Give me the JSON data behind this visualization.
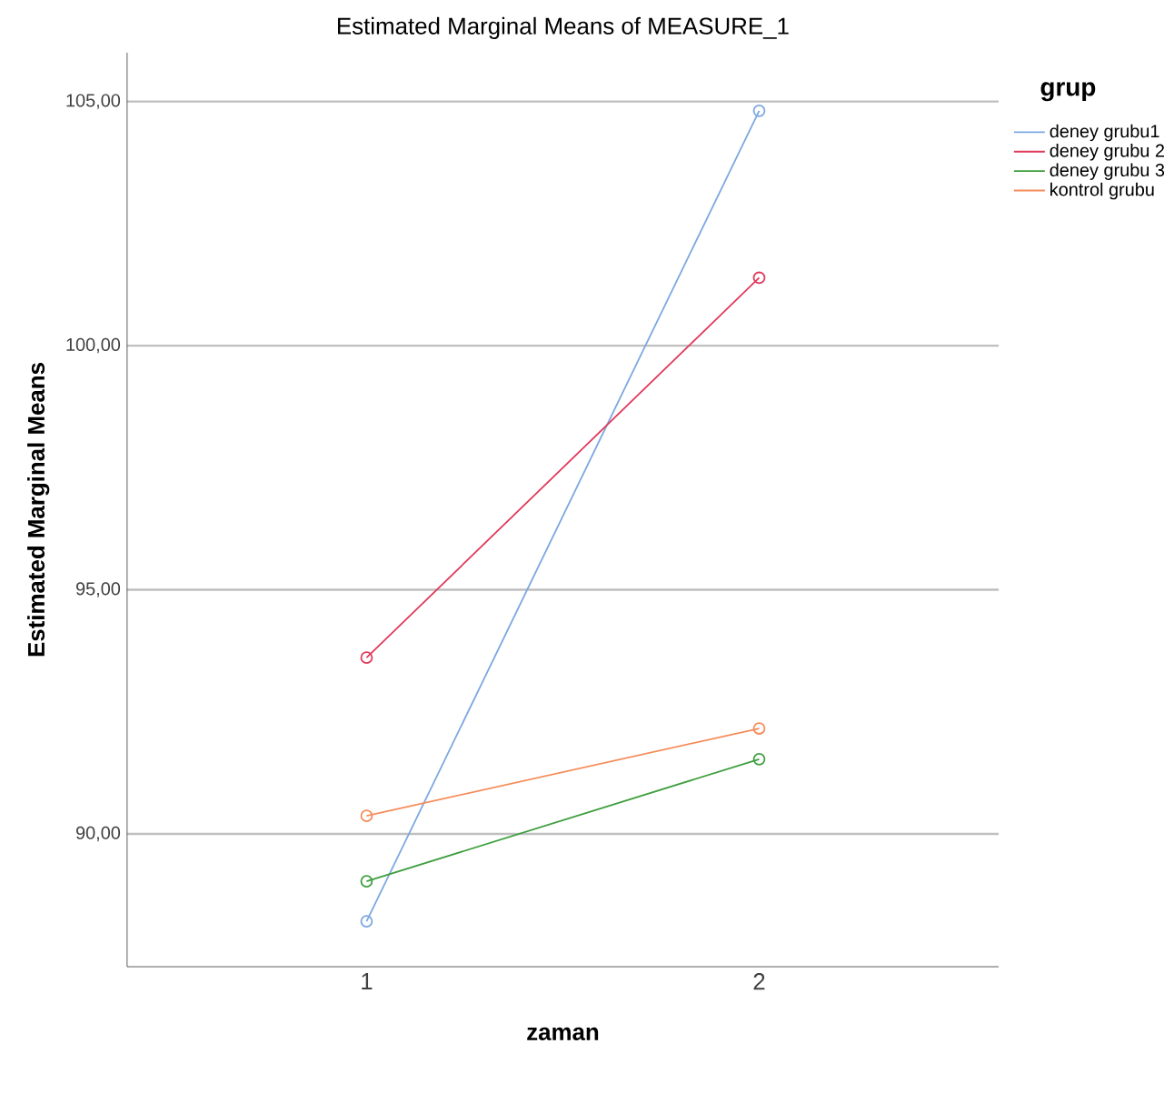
{
  "chart_data": {
    "type": "line",
    "title": "Estimated Marginal Means of MEASURE_1",
    "xlabel": "zaman",
    "ylabel": "Estimated Marginal Means",
    "legend_title": "grup",
    "categories": [
      "1",
      "2"
    ],
    "series": [
      {
        "name": "deney grubu1",
        "color": "#7ba7e0",
        "values": [
          88.21,
          104.81
        ]
      },
      {
        "name": "deney grubu 2",
        "color": "#e0395a",
        "values": [
          93.61,
          101.39
        ]
      },
      {
        "name": "deney grubu 3",
        "color": "#3e9e3e",
        "values": [
          89.03,
          91.53
        ]
      },
      {
        "name": "kontrol grubu",
        "color": "#f58c5a",
        "values": [
          90.37,
          92.16
        ]
      }
    ],
    "ylim": [
      87.28,
      106.0
    ],
    "yticks": [
      {
        "value": 90,
        "label": "90,00"
      },
      {
        "value": 95,
        "label": "95,00"
      },
      {
        "value": 100,
        "label": "100,00"
      },
      {
        "value": 105,
        "label": "105,00"
      }
    ],
    "grid": "y",
    "legend": "right",
    "marker": "circle",
    "line_style": "solid"
  }
}
